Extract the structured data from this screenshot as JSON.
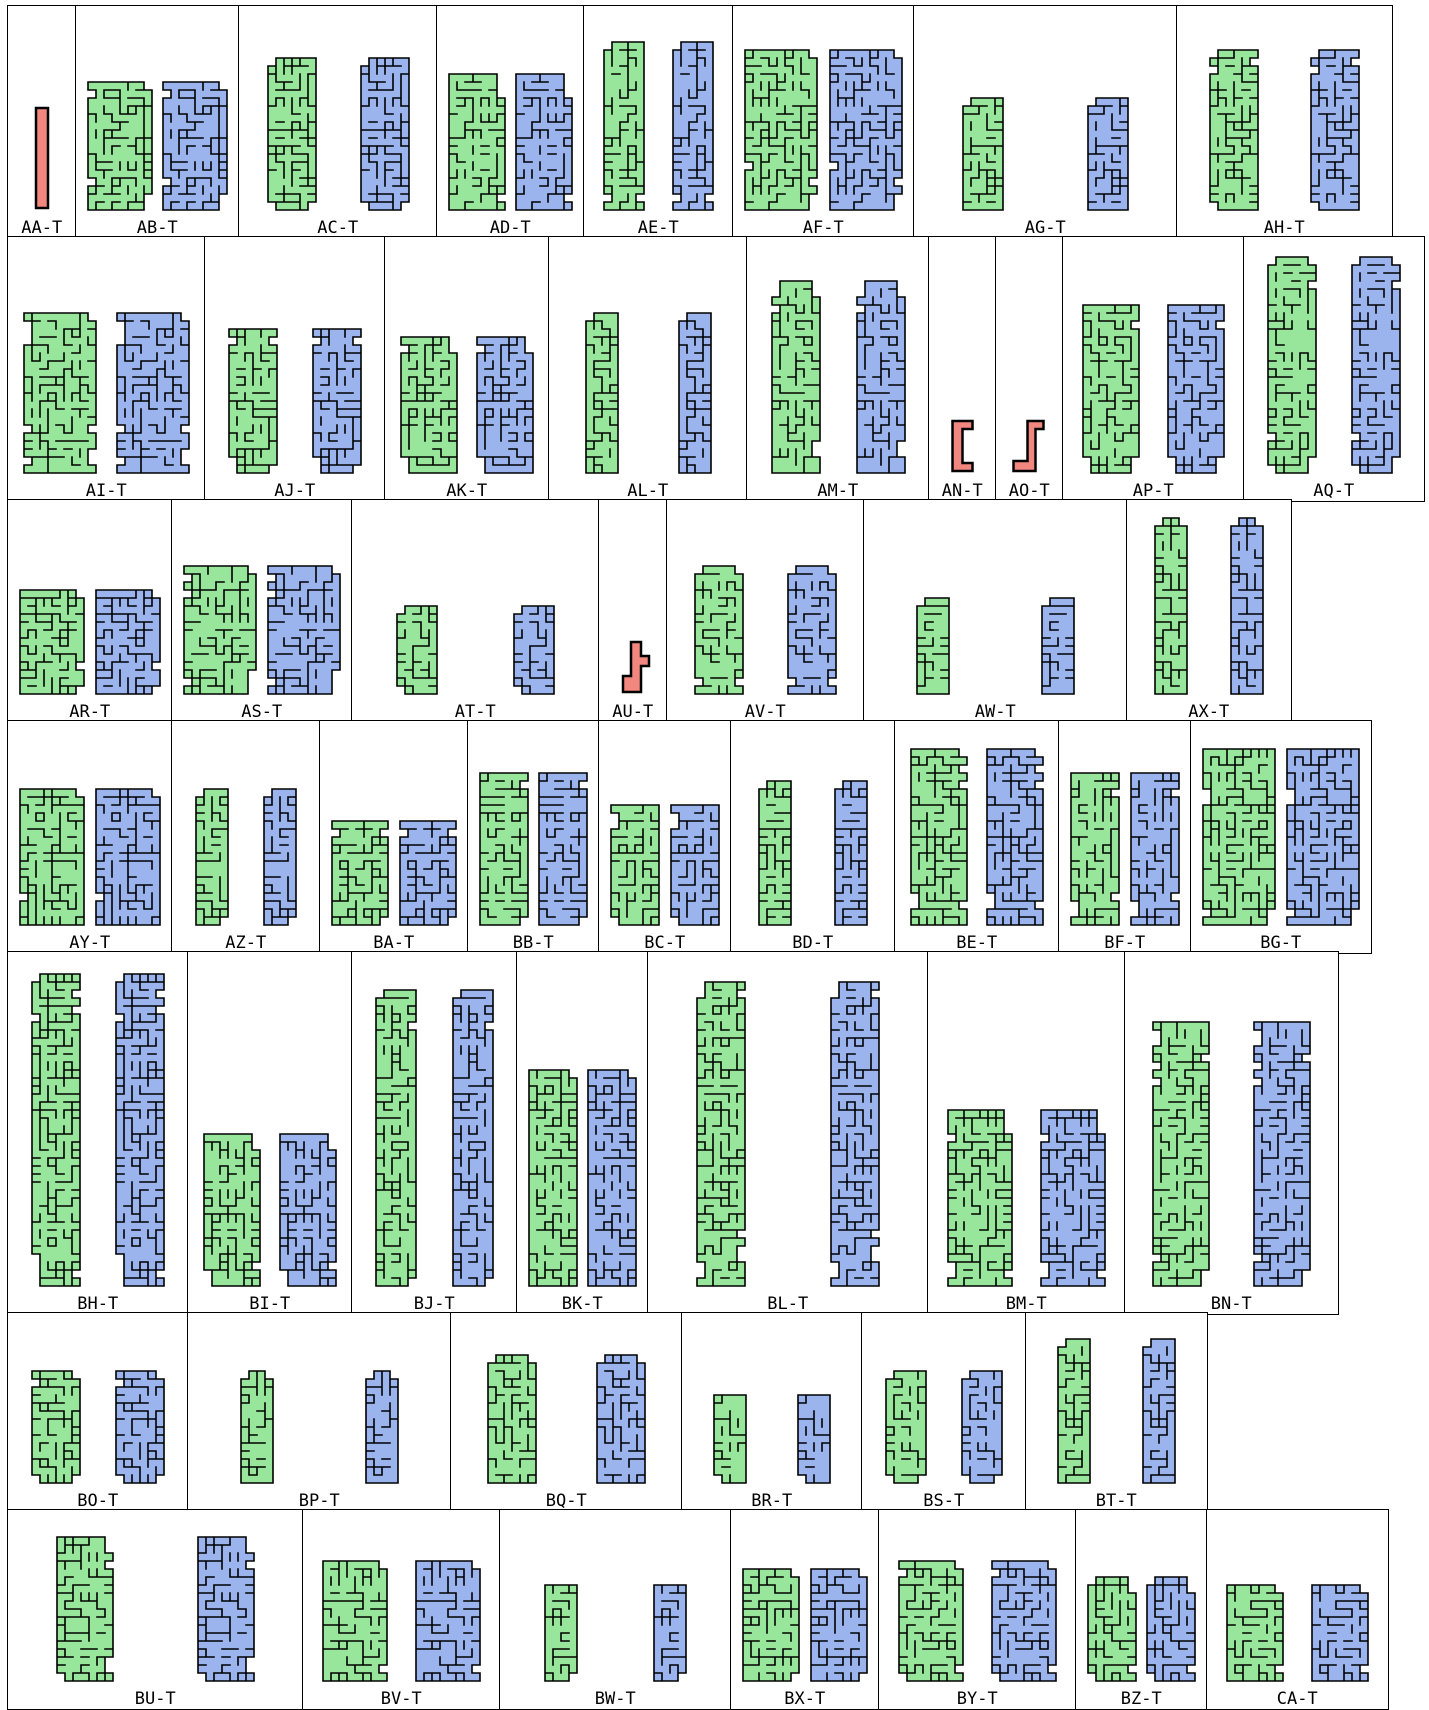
{
  "diagram": {
    "title": "",
    "colors": {
      "left_piece": "#98e69b",
      "right_piece": "#9bb4ee",
      "single_piece": "#f2877f",
      "outline": "#000000",
      "frame": "#000000"
    },
    "rows": [
      {
        "cells": [
          {
            "label": "AA-T",
            "kind": "single"
          },
          {
            "label": "AB-T",
            "kind": "pair"
          },
          {
            "label": "AC-T",
            "kind": "pair"
          },
          {
            "label": "AD-T",
            "kind": "pair"
          },
          {
            "label": "AE-T",
            "kind": "pair"
          },
          {
            "label": "AF-T",
            "kind": "pair"
          },
          {
            "label": "AG-T",
            "kind": "pair"
          },
          {
            "label": "AH-T",
            "kind": "pair"
          }
        ]
      },
      {
        "cells": [
          {
            "label": "AI-T",
            "kind": "pair"
          },
          {
            "label": "AJ-T",
            "kind": "pair"
          },
          {
            "label": "AK-T",
            "kind": "pair"
          },
          {
            "label": "AL-T",
            "kind": "pair"
          },
          {
            "label": "AM-T",
            "kind": "pair"
          },
          {
            "label": "AN-T",
            "kind": "single"
          },
          {
            "label": "AO-T",
            "kind": "single"
          },
          {
            "label": "AP-T",
            "kind": "pair"
          },
          {
            "label": "AQ-T",
            "kind": "pair"
          }
        ]
      },
      {
        "cells": [
          {
            "label": "AR-T",
            "kind": "pair"
          },
          {
            "label": "AS-T",
            "kind": "pair"
          },
          {
            "label": "AT-T",
            "kind": "pair"
          },
          {
            "label": "AU-T",
            "kind": "single"
          },
          {
            "label": "AV-T",
            "kind": "pair"
          },
          {
            "label": "AW-T",
            "kind": "pair"
          },
          {
            "label": "AX-T",
            "kind": "pair"
          }
        ]
      },
      {
        "cells": [
          {
            "label": "AY-T",
            "kind": "pair"
          },
          {
            "label": "AZ-T",
            "kind": "pair"
          },
          {
            "label": "BA-T",
            "kind": "pair"
          },
          {
            "label": "BB-T",
            "kind": "pair"
          },
          {
            "label": "BC-T",
            "kind": "pair"
          },
          {
            "label": "BD-T",
            "kind": "pair"
          },
          {
            "label": "BE-T",
            "kind": "pair"
          },
          {
            "label": "BF-T",
            "kind": "pair"
          },
          {
            "label": "BG-T",
            "kind": "pair"
          }
        ]
      },
      {
        "cells": [
          {
            "label": "BH-T",
            "kind": "pair"
          },
          {
            "label": "BI-T",
            "kind": "pair"
          },
          {
            "label": "BJ-T",
            "kind": "pair"
          },
          {
            "label": "BK-T",
            "kind": "pair"
          },
          {
            "label": "BL-T",
            "kind": "pair"
          },
          {
            "label": "BM-T",
            "kind": "pair"
          },
          {
            "label": "BN-T",
            "kind": "pair"
          }
        ]
      },
      {
        "cells": [
          {
            "label": "BO-T",
            "kind": "pair"
          },
          {
            "label": "BP-T",
            "kind": "pair"
          },
          {
            "label": "BQ-T",
            "kind": "pair"
          },
          {
            "label": "BR-T",
            "kind": "pair"
          },
          {
            "label": "BS-T",
            "kind": "pair"
          },
          {
            "label": "BT-T",
            "kind": "pair"
          }
        ]
      },
      {
        "cells": [
          {
            "label": "BU-T",
            "kind": "pair"
          },
          {
            "label": "BV-T",
            "kind": "pair"
          },
          {
            "label": "BW-T",
            "kind": "pair"
          },
          {
            "label": "BX-T",
            "kind": "pair"
          },
          {
            "label": "BY-T",
            "kind": "pair"
          },
          {
            "label": "BZ-T",
            "kind": "pair"
          },
          {
            "label": "CA-T",
            "kind": "pair"
          }
        ]
      }
    ]
  }
}
